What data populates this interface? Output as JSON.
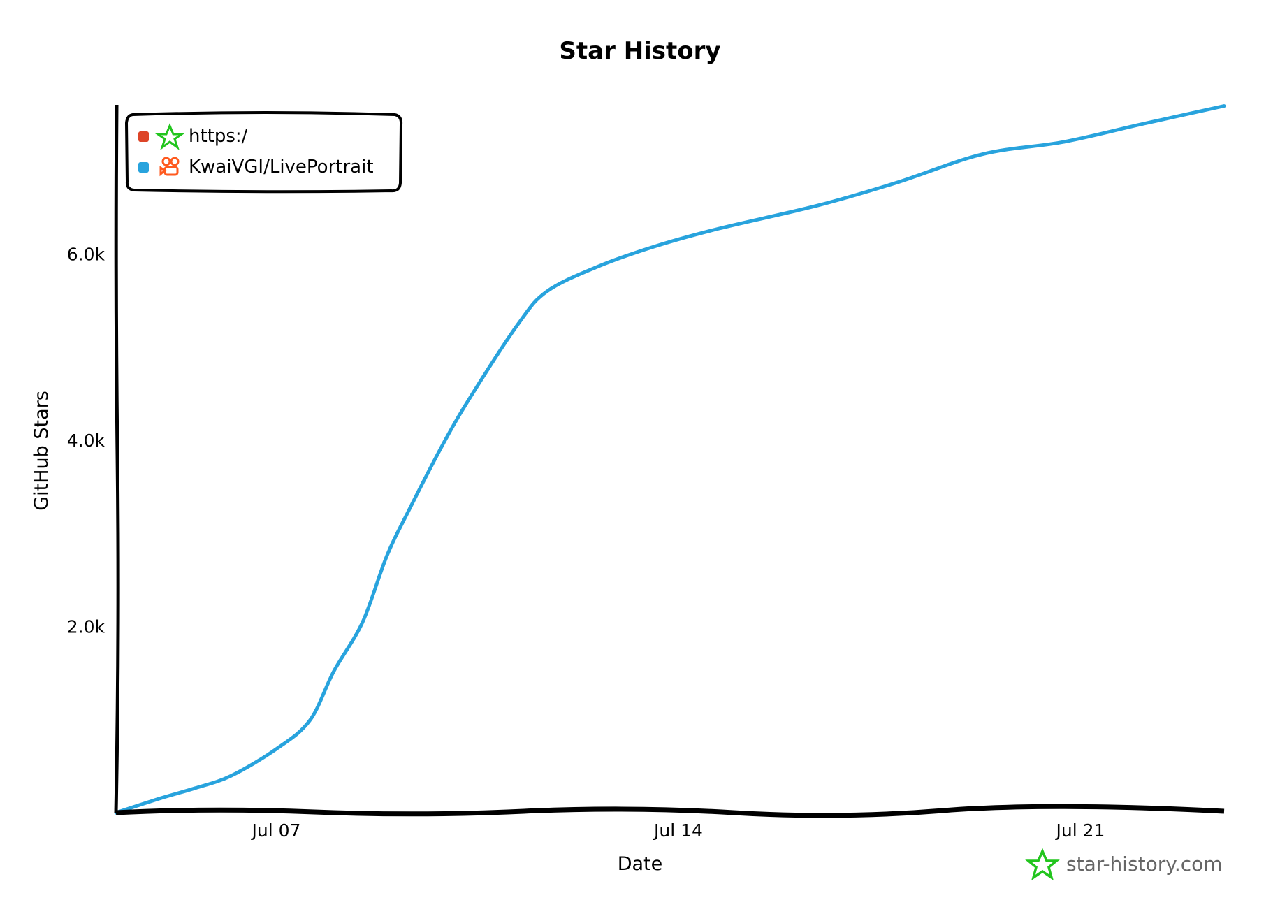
{
  "chart_data": {
    "type": "line",
    "title": "Star History",
    "xlabel": "Date",
    "ylabel": "GitHub Stars",
    "x_tick_labels": [
      "Jul 07",
      "Jul 14",
      "Jul 21"
    ],
    "y_tick_labels": [
      "2.0k",
      "4.0k",
      "6.0k"
    ],
    "y_ticks": [
      2000,
      4000,
      6000
    ],
    "ylim": [
      0,
      7600
    ],
    "xlim": [
      "Jul 04 05:00",
      "Jul 23 12:00"
    ],
    "grid": false,
    "legend_position": "top-left",
    "legend": [
      {
        "label": "https:/",
        "color": "#dd4528",
        "icon": "star-history-logo-icon"
      },
      {
        "label": "KwaiVGI/LivePortrait",
        "color": "#28a3dd",
        "icon": "kuaishou-logo-icon"
      }
    ],
    "series": [
      {
        "name": "KwaiVGI/LivePortrait",
        "color": "#28a3dd",
        "x": [
          "Jul 04 05:00",
          "Jul 05 00:00",
          "Jul 05 14:00",
          "Jul 06 05:00",
          "Jul 07 00:00",
          "Jul 07 14:00",
          "Jul 08 00:00",
          "Jul 08 12:00",
          "Jul 08 22:00",
          "Jul 09 07:00",
          "Jul 09 22:00",
          "Jul 10 10:00",
          "Jul 11 05:00",
          "Jul 11 17:00",
          "Jul 12 14:00",
          "Jul 13 14:00",
          "Jul 14 17:00",
          "Jul 16 10:00",
          "Jul 17 19:00",
          "Jul 19 07:00",
          "Jul 20 17:00",
          "Jul 22 02:00",
          "Jul 23 12:00"
        ],
        "y": [
          0,
          158,
          263,
          395,
          684,
          991,
          1518,
          2044,
          2746,
          3228,
          3974,
          4500,
          5246,
          5596,
          5860,
          6079,
          6272,
          6518,
          6763,
          7070,
          7202,
          7395,
          7588
        ]
      }
    ],
    "watermark": "star-history.com"
  }
}
